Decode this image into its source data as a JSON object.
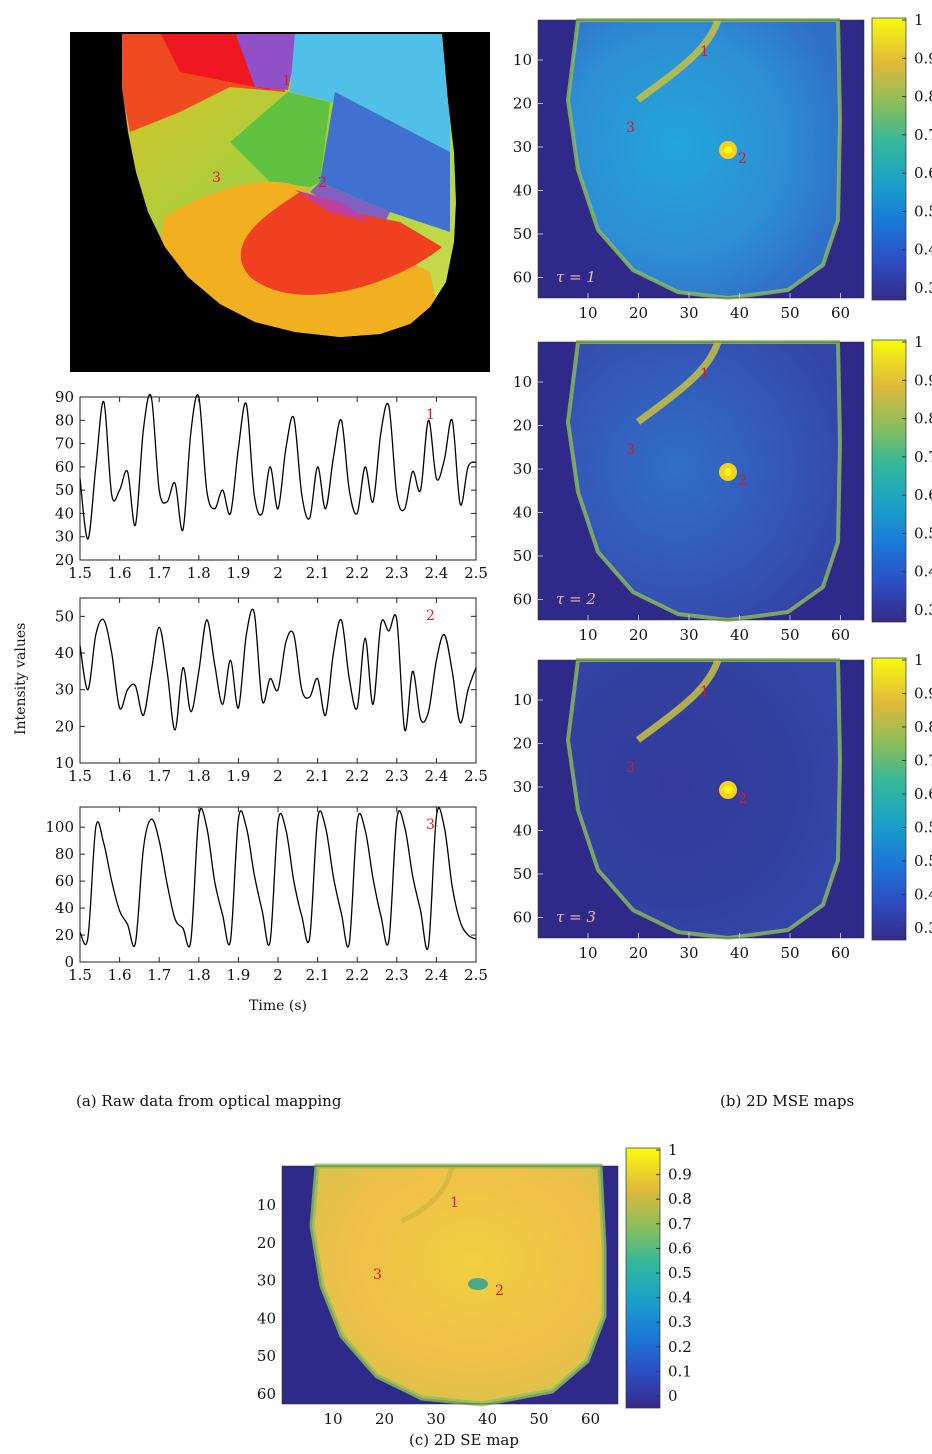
{
  "captions": {
    "a": "(a) Raw data from optical mapping",
    "b": "(b) 2D MSE maps",
    "c": "(c) 2D SE map"
  },
  "phase_map": {
    "markers": [
      "1",
      "2",
      "3"
    ]
  },
  "chart_data": [
    {
      "type": "line",
      "id": "trace1",
      "marker": "1",
      "x": [
        1.5,
        1.52,
        1.54,
        1.56,
        1.58,
        1.6,
        1.62,
        1.64,
        1.66,
        1.68,
        1.7,
        1.72,
        1.74,
        1.76,
        1.78,
        1.8,
        1.82,
        1.84,
        1.86,
        1.88,
        1.9,
        1.92,
        1.94,
        1.96,
        1.98,
        2.0,
        2.02,
        2.04,
        2.06,
        2.08,
        2.1,
        2.12,
        2.14,
        2.16,
        2.18,
        2.2,
        2.22,
        2.24,
        2.26,
        2.28,
        2.3,
        2.32,
        2.34,
        2.36,
        2.38,
        2.4,
        2.42,
        2.44,
        2.46,
        2.48,
        2.5
      ],
      "y": [
        55,
        29,
        60,
        88,
        48,
        50,
        58,
        35,
        76,
        90,
        50,
        45,
        53,
        33,
        75,
        90,
        50,
        42,
        50,
        40,
        68,
        87,
        48,
        40,
        60,
        42,
        68,
        81,
        48,
        38,
        60,
        42,
        64,
        80,
        50,
        40,
        60,
        45,
        75,
        86,
        48,
        42,
        58,
        50,
        80,
        55,
        63,
        80,
        44,
        60,
        62
      ],
      "xlim": [
        1.5,
        2.5
      ],
      "ylim": [
        20,
        90
      ],
      "xticks": [
        "1.5",
        "1.6",
        "1.7",
        "1.8",
        "1.9",
        "2",
        "2.1",
        "2.2",
        "2.3",
        "2.4",
        "2.5"
      ],
      "yticks": [
        "90",
        "80",
        "70",
        "60",
        "50",
        "40",
        "30",
        "20"
      ]
    },
    {
      "type": "line",
      "id": "trace2",
      "marker": "2",
      "x": [
        1.5,
        1.52,
        1.54,
        1.56,
        1.58,
        1.6,
        1.62,
        1.64,
        1.66,
        1.68,
        1.7,
        1.72,
        1.74,
        1.76,
        1.78,
        1.8,
        1.82,
        1.84,
        1.86,
        1.88,
        1.9,
        1.92,
        1.94,
        1.96,
        1.98,
        2.0,
        2.02,
        2.04,
        2.06,
        2.08,
        2.1,
        2.12,
        2.14,
        2.16,
        2.18,
        2.2,
        2.22,
        2.24,
        2.26,
        2.28,
        2.3,
        2.32,
        2.34,
        2.36,
        2.38,
        2.4,
        2.42,
        2.44,
        2.46,
        2.48,
        2.5
      ],
      "y": [
        42,
        30,
        45,
        49,
        40,
        25,
        30,
        31,
        23,
        35,
        47,
        35,
        19,
        36,
        24,
        35,
        49,
        37,
        26,
        38,
        25,
        45,
        51,
        27,
        33,
        30,
        43,
        45,
        30,
        28,
        33,
        23,
        40,
        49,
        33,
        25,
        44,
        26,
        48,
        46,
        49,
        19,
        35,
        22,
        24,
        38,
        45,
        35,
        21,
        30,
        36
      ],
      "xlim": [
        1.5,
        2.5
      ],
      "ylim": [
        10,
        55
      ],
      "xticks": [
        "1.5",
        "1.6",
        "1.7",
        "1.8",
        "1.9",
        "2",
        "2.1",
        "2.2",
        "2.3",
        "2.4",
        "2.5"
      ],
      "yticks": [
        "50",
        "40",
        "30",
        "20",
        "10"
      ]
    },
    {
      "type": "line",
      "id": "trace3",
      "marker": "3",
      "x": [
        1.5,
        1.52,
        1.54,
        1.56,
        1.58,
        1.6,
        1.62,
        1.64,
        1.66,
        1.68,
        1.7,
        1.72,
        1.74,
        1.76,
        1.78,
        1.8,
        1.82,
        1.84,
        1.86,
        1.88,
        1.9,
        1.92,
        1.94,
        1.96,
        1.98,
        2.0,
        2.02,
        2.04,
        2.06,
        2.08,
        2.1,
        2.12,
        2.14,
        2.16,
        2.18,
        2.2,
        2.22,
        2.24,
        2.26,
        2.28,
        2.3,
        2.32,
        2.34,
        2.36,
        2.38,
        2.4,
        2.42,
        2.44,
        2.46,
        2.48,
        2.5
      ],
      "y": [
        22,
        18,
        100,
        88,
        60,
        38,
        28,
        14,
        84,
        106,
        90,
        58,
        32,
        25,
        16,
        108,
        100,
        60,
        35,
        16,
        106,
        100,
        65,
        38,
        15,
        104,
        98,
        60,
        34,
        18,
        106,
        100,
        63,
        36,
        14,
        104,
        98,
        62,
        34,
        16,
        106,
        100,
        64,
        38,
        12,
        108,
        100,
        56,
        30,
        20,
        17
      ],
      "xlim": [
        1.5,
        2.5
      ],
      "ylim": [
        0,
        115
      ],
      "xticks": [
        "1.5",
        "1.6",
        "1.7",
        "1.8",
        "1.9",
        "2",
        "2.1",
        "2.2",
        "2.3",
        "2.4",
        "2.5"
      ],
      "yticks": [
        "100",
        "80",
        "60",
        "40",
        "20",
        "0"
      ],
      "xlabel": "Time (s)"
    }
  ],
  "shared_ylabel": "Intensity values",
  "mse_maps": [
    {
      "tau_label": "τ = 1",
      "colorbar_ticks": [
        "1",
        "0.9",
        "0.8",
        "0.7",
        "0.6",
        "0.5",
        "0.4",
        "0.3"
      ]
    },
    {
      "tau_label": "τ = 2",
      "colorbar_ticks": [
        "1",
        "0.9",
        "0.8",
        "0.7",
        "0.6",
        "0.5",
        "0.4",
        "0.3"
      ]
    },
    {
      "tau_label": "τ = 3",
      "colorbar_ticks": [
        "1",
        "0.9",
        "0.8",
        "0.7",
        "0.6",
        "0.5",
        "0.5",
        "0.4",
        "0.3"
      ]
    }
  ],
  "map_axes": {
    "yticks": [
      "10",
      "20",
      "30",
      "40",
      "50",
      "60"
    ],
    "xticks": [
      "10",
      "20",
      "30",
      "40",
      "50",
      "60"
    ]
  },
  "se_map": {
    "colorbar_ticks": [
      "1",
      "0.9",
      "0.8",
      "0.7",
      "0.6",
      "0.5",
      "0.4",
      "0.3",
      "0.2",
      "0.1",
      "0"
    ]
  },
  "map_markers": [
    "1",
    "2",
    "3"
  ],
  "colors": {
    "map_background": "#2f2a8a",
    "trace": "#000000",
    "marker": "#e8141c"
  }
}
